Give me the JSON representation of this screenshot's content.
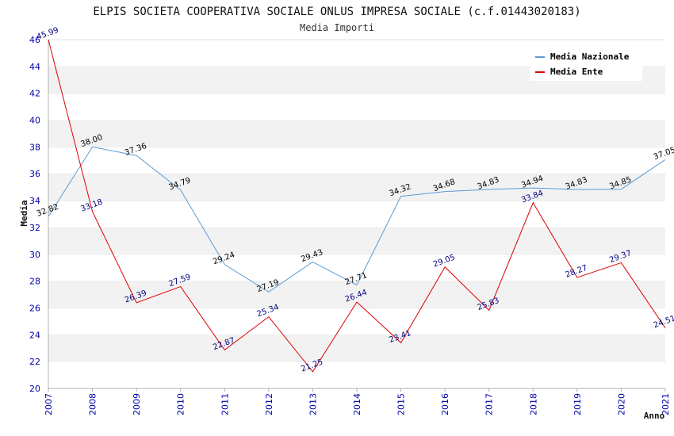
{
  "header": {
    "title": "ELPIS SOCIETA COOPERATIVA SOCIALE ONLUS IMPRESA SOCIALE (c.f.01443020183)",
    "subtitle": "Media Importi"
  },
  "chart_data": {
    "type": "line",
    "title": "ELPIS SOCIETA COOPERATIVA SOCIALE ONLUS IMPRESA SOCIALE (c.f.01443020183)",
    "subtitle": "Media Importi",
    "xlabel": "Anno",
    "ylabel": "Media",
    "ylim": [
      20,
      46
    ],
    "yticks": [
      "20",
      "22",
      "24",
      "26",
      "28",
      "30",
      "32",
      "34",
      "36",
      "38",
      "40",
      "42",
      "44",
      "46"
    ],
    "x": [
      "2007",
      "2008",
      "2009",
      "2010",
      "2011",
      "2012",
      "2013",
      "2014",
      "2015",
      "2016",
      "2017",
      "2018",
      "2019",
      "2020",
      "2021"
    ],
    "legend_position": "top-right",
    "series": [
      {
        "name": "Media Nazionale",
        "color": "#5b9bd5",
        "label_color": "#000000",
        "values": [
          32.82,
          38.0,
          37.36,
          34.79,
          29.24,
          27.19,
          29.43,
          27.71,
          34.32,
          34.68,
          34.83,
          34.94,
          34.83,
          34.85,
          37.05
        ],
        "labels": [
          "32.82",
          "38.00",
          "37.36",
          "34.79",
          "29.24",
          "27.19",
          "29.43",
          "27.71",
          "34.32",
          "34.68",
          "34.83",
          "34.94",
          "34.83",
          "34.85",
          "37.05"
        ]
      },
      {
        "name": "Media Ente",
        "color": "#dd0000",
        "label_color": "#000080",
        "values": [
          45.99,
          33.18,
          26.39,
          27.59,
          22.87,
          25.34,
          21.25,
          26.44,
          23.41,
          29.05,
          25.83,
          33.84,
          28.27,
          29.37,
          24.51
        ],
        "labels": [
          "45.99",
          "33.18",
          "26.39",
          "27.59",
          "22.87",
          "25.34",
          "21.25",
          "26.44",
          "23.41",
          "29.05",
          "25.83",
          "33.84",
          "28.27",
          "29.37",
          "24.51"
        ]
      }
    ]
  }
}
